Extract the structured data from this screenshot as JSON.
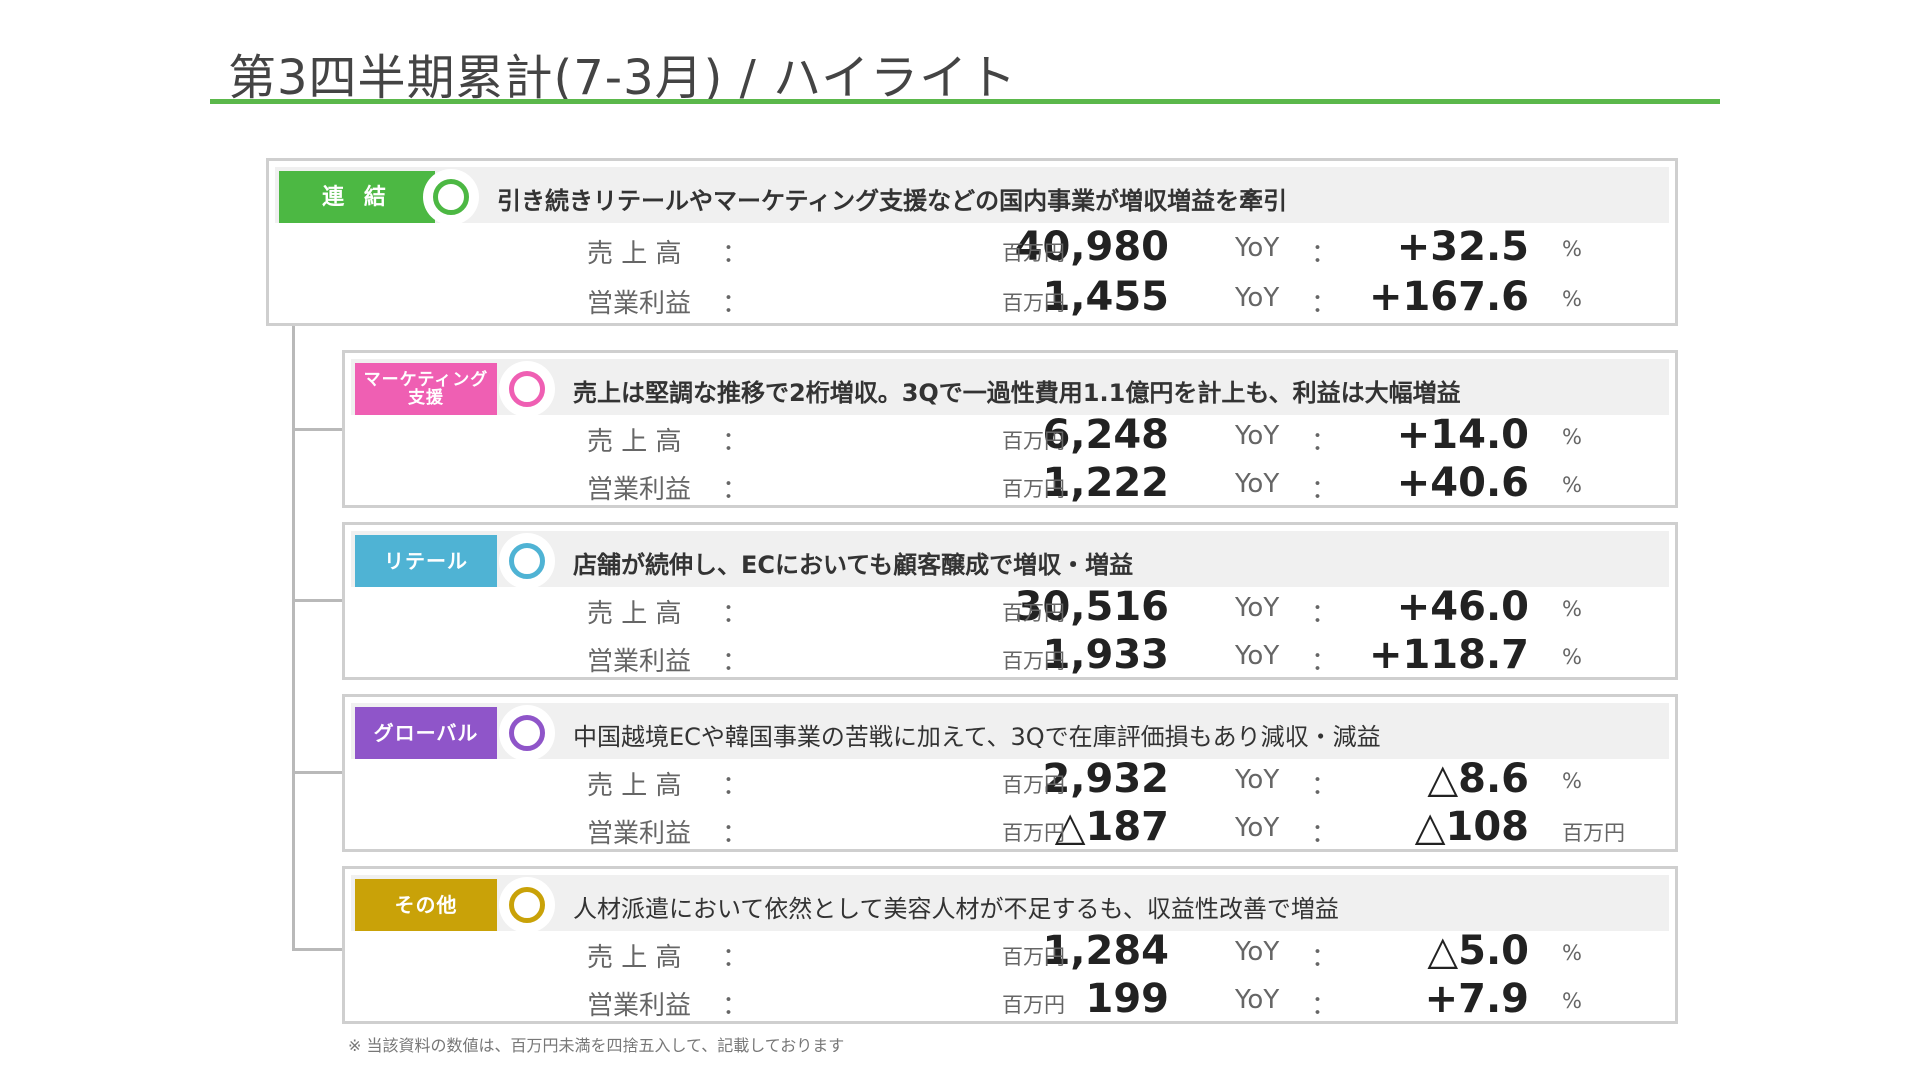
{
  "page": {
    "title": "第3四半期累計(7-3月) / ハイライト",
    "footnote": "※ 当該資料の数値は、百万円未満を四捨五入して、記載しております"
  },
  "colors": {
    "accent_green": "#5bb84b",
    "consolidated": "#4cb843",
    "marketing": "#ef5fb3",
    "retail": "#4fb3d4",
    "global": "#8f55c9",
    "other": "#c9a208"
  },
  "segments": [
    {
      "tag": "連 結",
      "color": "#4cb843",
      "headline": "引き続きリテールやマーケティング支援などの国内事業が増収増益を牽引",
      "sales_label": "売 上 高",
      "sales_value": "40,980",
      "sales_unit": "百万円",
      "sales_yoy_label": "YoY",
      "sales_yoy": "+32.5",
      "sales_yoy_unit": "%",
      "op_label": "営業利益",
      "op_value": "1,455",
      "op_unit": "百万円",
      "op_yoy_label": "YoY",
      "op_yoy": "+167.6",
      "op_yoy_unit": "%",
      "colon": "："
    },
    {
      "tag": "マーケティング\n支援",
      "color": "#ef5fb3",
      "headline": "売上は堅調な推移で2桁増収。3Qで一過性費用1.1億円を計上も、利益は大幅増益",
      "sales_label": "売 上 高",
      "sales_value": "6,248",
      "sales_unit": "百万円",
      "sales_yoy_label": "YoY",
      "sales_yoy": "+14.0",
      "sales_yoy_unit": "%",
      "op_label": "営業利益",
      "op_value": "1,222",
      "op_unit": "百万円",
      "op_yoy_label": "YoY",
      "op_yoy": "+40.6",
      "op_yoy_unit": "%",
      "colon": "："
    },
    {
      "tag": "リテール",
      "color": "#4fb3d4",
      "headline": "店舗が続伸し、ECにおいても顧客醸成で増収・増益",
      "sales_label": "売 上 高",
      "sales_value": "30,516",
      "sales_unit": "百万円",
      "sales_yoy_label": "YoY",
      "sales_yoy": "+46.0",
      "sales_yoy_unit": "%",
      "op_label": "営業利益",
      "op_value": "1,933",
      "op_unit": "百万円",
      "op_yoy_label": "YoY",
      "op_yoy": "+118.7",
      "op_yoy_unit": "%",
      "colon": "："
    },
    {
      "tag": "グローバル",
      "color": "#8f55c9",
      "headline": "中国越境ECや韓国事業の苦戦に加えて、3Qで在庫評価損もあり減収・減益",
      "sales_label": "売 上 高",
      "sales_value": "2,932",
      "sales_unit": "百万円",
      "sales_yoy_label": "YoY",
      "sales_yoy": "△8.6",
      "sales_yoy_unit": "%",
      "op_label": "営業利益",
      "op_value": "△187",
      "op_unit": "百万円",
      "op_yoy_label": "YoY",
      "op_yoy": "△108",
      "op_yoy_unit": "百万円",
      "colon": "："
    },
    {
      "tag": "その他",
      "color": "#c9a208",
      "headline": "人材派遣において依然として美容人材が不足するも、収益性改善で増益",
      "sales_label": "売 上 高",
      "sales_value": "1,284",
      "sales_unit": "百万円",
      "sales_yoy_label": "YoY",
      "sales_yoy": "△5.0",
      "sales_yoy_unit": "%",
      "op_label": "営業利益",
      "op_value": "199",
      "op_unit": "百万円",
      "op_yoy_label": "YoY",
      "op_yoy": "+7.9",
      "op_yoy_unit": "%",
      "colon": "："
    }
  ]
}
